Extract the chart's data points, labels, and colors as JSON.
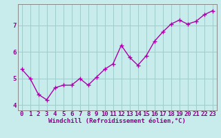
{
  "x": [
    0,
    1,
    2,
    3,
    4,
    5,
    6,
    7,
    8,
    9,
    10,
    11,
    12,
    13,
    14,
    15,
    16,
    17,
    18,
    19,
    20,
    21,
    22,
    23
  ],
  "y": [
    5.35,
    5.0,
    4.4,
    4.2,
    4.65,
    4.75,
    4.75,
    5.0,
    4.75,
    5.05,
    5.35,
    5.55,
    6.25,
    5.8,
    5.5,
    5.85,
    6.4,
    6.75,
    7.05,
    7.2,
    7.05,
    7.15,
    7.4,
    7.55
  ],
  "line_color": "#aa00aa",
  "marker": "+",
  "bg_color": "#c8ecec",
  "grid_color": "#a0cccc",
  "axis_color": "#880088",
  "xlabel": "Windchill (Refroidissement éolien,°C)",
  "ylabel": "",
  "xlim": [
    -0.5,
    23.5
  ],
  "ylim": [
    3.8,
    7.8
  ],
  "yticks": [
    4,
    5,
    6,
    7
  ],
  "xticks": [
    0,
    1,
    2,
    3,
    4,
    5,
    6,
    7,
    8,
    9,
    10,
    11,
    12,
    13,
    14,
    15,
    16,
    17,
    18,
    19,
    20,
    21,
    22,
    23
  ],
  "xlabel_fontsize": 6.5,
  "tick_fontsize": 6.5,
  "line_width": 1.0,
  "marker_size": 4
}
